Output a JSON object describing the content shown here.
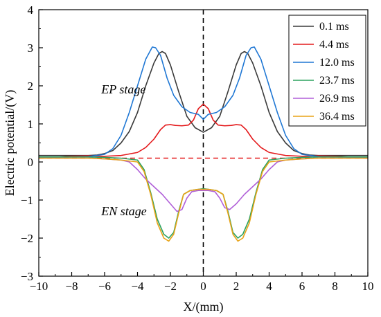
{
  "chart_data": {
    "type": "line",
    "xlabel": "X/(mm)",
    "ylabel": "Electric potential/(V)",
    "xlim": [
      -10,
      10
    ],
    "ylim": [
      -3,
      4
    ],
    "x_ticks": [
      -10,
      -8,
      -6,
      -4,
      -2,
      0,
      2,
      4,
      6,
      8,
      10
    ],
    "y_ticks": [
      -3,
      -2,
      -1,
      0,
      1,
      2,
      3,
      4
    ],
    "x_tick_labels": [
      "−10",
      "−8",
      "−6",
      "−4",
      "−2",
      "0",
      "2",
      "4",
      "6",
      "8",
      "10"
    ],
    "y_tick_labels": [
      "−3",
      "−2",
      "−1",
      "0",
      "1",
      "2",
      "3",
      "4"
    ],
    "grid": false,
    "legend_position": "top-right",
    "reference_lines": {
      "horizontal_y": 0.1,
      "horizontal_color": "#e41a1c",
      "vertical_x": 0,
      "vertical_color": "#000000"
    },
    "annotations": [
      {
        "text": "EP stage",
        "x": -6.2,
        "y": 1.8
      },
      {
        "text": "EN stage",
        "x": -6.2,
        "y": -1.4
      }
    ],
    "series": [
      {
        "name": "0.1 ms",
        "color": "#3a3a3a",
        "points": [
          [
            -10,
            0.17
          ],
          [
            -8,
            0.17
          ],
          [
            -7,
            0.17
          ],
          [
            -6.5,
            0.18
          ],
          [
            -6,
            0.22
          ],
          [
            -5.5,
            0.3
          ],
          [
            -5,
            0.5
          ],
          [
            -4.5,
            0.8
          ],
          [
            -4,
            1.3
          ],
          [
            -3.5,
            2.0
          ],
          [
            -3,
            2.6
          ],
          [
            -2.7,
            2.85
          ],
          [
            -2.5,
            2.9
          ],
          [
            -2.3,
            2.85
          ],
          [
            -2,
            2.55
          ],
          [
            -1.5,
            1.85
          ],
          [
            -1,
            1.2
          ],
          [
            -0.5,
            0.9
          ],
          [
            0,
            0.78
          ],
          [
            0.5,
            0.9
          ],
          [
            1,
            1.2
          ],
          [
            1.5,
            1.85
          ],
          [
            2,
            2.55
          ],
          [
            2.3,
            2.85
          ],
          [
            2.5,
            2.9
          ],
          [
            2.7,
            2.85
          ],
          [
            3,
            2.6
          ],
          [
            3.5,
            2.0
          ],
          [
            4,
            1.3
          ],
          [
            4.5,
            0.8
          ],
          [
            5,
            0.5
          ],
          [
            5.5,
            0.3
          ],
          [
            6,
            0.22
          ],
          [
            6.5,
            0.18
          ],
          [
            7,
            0.17
          ],
          [
            8,
            0.17
          ],
          [
            10,
            0.17
          ]
        ]
      },
      {
        "name": "4.4 ms",
        "color": "#e41a1c",
        "points": [
          [
            -10,
            0.1
          ],
          [
            -8,
            0.15
          ],
          [
            -7,
            0.16
          ],
          [
            -6,
            0.15
          ],
          [
            -5,
            0.17
          ],
          [
            -4,
            0.25
          ],
          [
            -3.5,
            0.38
          ],
          [
            -3,
            0.6
          ],
          [
            -2.6,
            0.85
          ],
          [
            -2.3,
            0.97
          ],
          [
            -2,
            0.98
          ],
          [
            -1.7,
            0.96
          ],
          [
            -1.3,
            0.95
          ],
          [
            -0.9,
            0.97
          ],
          [
            -0.6,
            1.1
          ],
          [
            -0.3,
            1.4
          ],
          [
            0,
            1.52
          ],
          [
            0.3,
            1.4
          ],
          [
            0.6,
            1.1
          ],
          [
            0.9,
            0.97
          ],
          [
            1.3,
            0.95
          ],
          [
            1.7,
            0.96
          ],
          [
            2,
            0.98
          ],
          [
            2.3,
            0.97
          ],
          [
            2.6,
            0.85
          ],
          [
            3,
            0.6
          ],
          [
            3.5,
            0.38
          ],
          [
            4,
            0.25
          ],
          [
            5,
            0.17
          ],
          [
            6,
            0.15
          ],
          [
            7,
            0.16
          ],
          [
            8,
            0.15
          ],
          [
            10,
            0.1
          ]
        ]
      },
      {
        "name": "12.0 ms",
        "color": "#1f77d4",
        "points": [
          [
            -10,
            0.12
          ],
          [
            -8,
            0.13
          ],
          [
            -7,
            0.14
          ],
          [
            -6,
            0.2
          ],
          [
            -5.5,
            0.35
          ],
          [
            -5,
            0.7
          ],
          [
            -4.5,
            1.3
          ],
          [
            -4,
            2.0
          ],
          [
            -3.5,
            2.7
          ],
          [
            -3.1,
            3.02
          ],
          [
            -2.9,
            3.0
          ],
          [
            -2.6,
            2.8
          ],
          [
            -2.2,
            2.2
          ],
          [
            -1.8,
            1.75
          ],
          [
            -1.3,
            1.45
          ],
          [
            -0.8,
            1.3
          ],
          [
            -0.3,
            1.25
          ],
          [
            0,
            1.12
          ],
          [
            0.3,
            1.25
          ],
          [
            0.8,
            1.3
          ],
          [
            1.3,
            1.45
          ],
          [
            1.8,
            1.75
          ],
          [
            2.2,
            2.2
          ],
          [
            2.6,
            2.8
          ],
          [
            2.9,
            3.0
          ],
          [
            3.1,
            3.02
          ],
          [
            3.5,
            2.7
          ],
          [
            4,
            2.0
          ],
          [
            4.5,
            1.3
          ],
          [
            5,
            0.7
          ],
          [
            5.5,
            0.35
          ],
          [
            6,
            0.2
          ],
          [
            7,
            0.14
          ],
          [
            8,
            0.13
          ],
          [
            10,
            0.12
          ]
        ]
      },
      {
        "name": "23.7 ms",
        "color": "#2ca25f",
        "points": [
          [
            -10,
            0.13
          ],
          [
            -8,
            0.13
          ],
          [
            -7,
            0.13
          ],
          [
            -6,
            0.12
          ],
          [
            -5,
            0.1
          ],
          [
            -4,
            0.05
          ],
          [
            -3.6,
            -0.2
          ],
          [
            -3.2,
            -0.8
          ],
          [
            -2.8,
            -1.5
          ],
          [
            -2.4,
            -1.9
          ],
          [
            -2.1,
            -2.0
          ],
          [
            -1.8,
            -1.85
          ],
          [
            -1.5,
            -1.3
          ],
          [
            -1.2,
            -0.85
          ],
          [
            -0.8,
            -0.75
          ],
          [
            -0.3,
            -0.72
          ],
          [
            0,
            -0.7
          ],
          [
            0.3,
            -0.72
          ],
          [
            0.8,
            -0.75
          ],
          [
            1.2,
            -0.85
          ],
          [
            1.5,
            -1.3
          ],
          [
            1.8,
            -1.85
          ],
          [
            2.1,
            -2.0
          ],
          [
            2.4,
            -1.9
          ],
          [
            2.8,
            -1.5
          ],
          [
            3.2,
            -0.8
          ],
          [
            3.6,
            -0.2
          ],
          [
            4,
            0.05
          ],
          [
            5,
            0.1
          ],
          [
            6,
            0.12
          ],
          [
            7,
            0.13
          ],
          [
            8,
            0.13
          ],
          [
            10,
            0.13
          ]
        ]
      },
      {
        "name": "26.9 ms",
        "color": "#b05fd8",
        "points": [
          [
            -10,
            0.1
          ],
          [
            -8,
            0.1
          ],
          [
            -7,
            0.1
          ],
          [
            -6,
            0.08
          ],
          [
            -5,
            0.05
          ],
          [
            -4.5,
            0.0
          ],
          [
            -4,
            -0.2
          ],
          [
            -3.5,
            -0.45
          ],
          [
            -3,
            -0.65
          ],
          [
            -2.5,
            -0.85
          ],
          [
            -2,
            -1.1
          ],
          [
            -1.6,
            -1.3
          ],
          [
            -1.3,
            -1.25
          ],
          [
            -1,
            -0.95
          ],
          [
            -0.7,
            -0.78
          ],
          [
            -0.3,
            -0.75
          ],
          [
            0,
            -0.75
          ],
          [
            0.3,
            -0.75
          ],
          [
            0.7,
            -0.78
          ],
          [
            1,
            -0.95
          ],
          [
            1.3,
            -1.2
          ],
          [
            1.6,
            -1.25
          ],
          [
            2,
            -1.1
          ],
          [
            2.5,
            -0.85
          ],
          [
            3,
            -0.65
          ],
          [
            3.5,
            -0.45
          ],
          [
            4,
            -0.2
          ],
          [
            4.5,
            0.0
          ],
          [
            5,
            0.05
          ],
          [
            6,
            0.08
          ],
          [
            7,
            0.1
          ],
          [
            8,
            0.1
          ],
          [
            10,
            0.1
          ]
        ]
      },
      {
        "name": "36.4 ms",
        "color": "#e8a317",
        "points": [
          [
            -10,
            0.1
          ],
          [
            -8,
            0.1
          ],
          [
            -7,
            0.1
          ],
          [
            -6,
            0.08
          ],
          [
            -5,
            0.05
          ],
          [
            -4,
            0.0
          ],
          [
            -3.6,
            -0.25
          ],
          [
            -3.2,
            -0.85
          ],
          [
            -2.8,
            -1.6
          ],
          [
            -2.4,
            -2.0
          ],
          [
            -2.1,
            -2.08
          ],
          [
            -1.8,
            -1.9
          ],
          [
            -1.5,
            -1.35
          ],
          [
            -1.2,
            -0.85
          ],
          [
            -0.8,
            -0.75
          ],
          [
            -0.3,
            -0.72
          ],
          [
            0,
            -0.72
          ],
          [
            0.3,
            -0.72
          ],
          [
            0.8,
            -0.75
          ],
          [
            1.2,
            -0.85
          ],
          [
            1.5,
            -1.35
          ],
          [
            1.8,
            -1.9
          ],
          [
            2.1,
            -2.08
          ],
          [
            2.4,
            -2.0
          ],
          [
            2.8,
            -1.6
          ],
          [
            3.2,
            -0.85
          ],
          [
            3.6,
            -0.25
          ],
          [
            4,
            0.0
          ],
          [
            5,
            0.05
          ],
          [
            6,
            0.08
          ],
          [
            7,
            0.1
          ],
          [
            8,
            0.1
          ],
          [
            10,
            0.1
          ]
        ]
      }
    ]
  }
}
